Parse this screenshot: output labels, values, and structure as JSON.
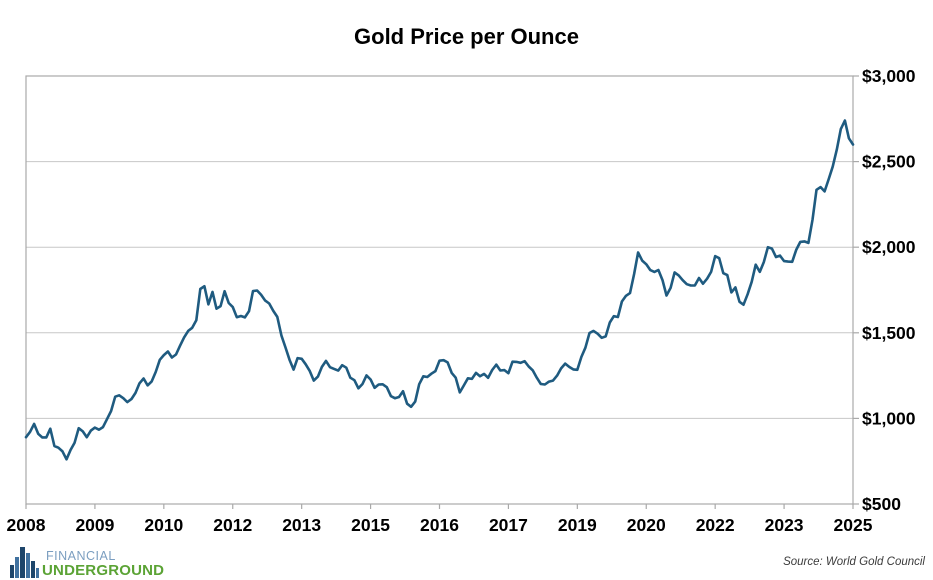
{
  "title": "Gold Price per Ounce",
  "source_note": "Source: World Gold Council",
  "logo": {
    "line1": "FINANCIAL",
    "line2": "UNDERGROUND"
  },
  "colors": {
    "line": "#1f5b80",
    "grid": "#c7c7c7",
    "axis_border": "#a9a9a9",
    "label_text": "#000000",
    "source_text": "#3c3c3c",
    "logo_blue_text": "#7b9ec0",
    "logo_green_text": "#5ba335",
    "logo_icon_dark": "#1e466b",
    "logo_icon_mid": "#40719f"
  },
  "chart_data": {
    "type": "line",
    "title": "Gold Price per Ounce",
    "frequency": "monthly",
    "x_start": "2008-01",
    "x_end": "2025-01",
    "ylim": [
      500,
      3000
    ],
    "y_ticks": [
      500,
      1000,
      1500,
      2000,
      2500,
      3000
    ],
    "y_tick_labels": [
      "$500",
      "$1,000",
      "$1,500",
      "$2,000",
      "$2,500",
      "$3,000"
    ],
    "y_axis_side": "right",
    "grid": "horizontal-only",
    "legend": "none",
    "x_tick_labels": [
      "2008",
      "2009",
      "2010",
      "2012",
      "2013",
      "2015",
      "2016",
      "2017",
      "2019",
      "2020",
      "2022",
      "2023",
      "2025"
    ],
    "x_tick_indices": [
      0,
      17,
      34,
      51,
      68,
      85,
      102,
      119,
      136,
      153,
      170,
      187,
      204
    ],
    "series_name": "Gold price (USD per ounce)",
    "values": [
      890,
      922,
      968,
      910,
      889,
      889,
      940,
      839,
      829,
      807,
      761,
      816,
      858,
      943,
      924,
      890,
      929,
      946,
      934,
      949,
      997,
      1043,
      1127,
      1135,
      1118,
      1095,
      1113,
      1149,
      1205,
      1233,
      1193,
      1216,
      1271,
      1342,
      1370,
      1391,
      1356,
      1373,
      1424,
      1473,
      1511,
      1529,
      1573,
      1756,
      1772,
      1666,
      1739,
      1641,
      1656,
      1743,
      1674,
      1650,
      1591,
      1598,
      1590,
      1626,
      1744,
      1747,
      1722,
      1688,
      1671,
      1628,
      1593,
      1485,
      1414,
      1343,
      1285,
      1352,
      1348,
      1316,
      1276,
      1221,
      1244,
      1301,
      1336,
      1299,
      1289,
      1279,
      1311,
      1296,
      1238,
      1223,
      1176,
      1201,
      1251,
      1227,
      1179,
      1198,
      1199,
      1182,
      1130,
      1118,
      1125,
      1159,
      1086,
      1068,
      1098,
      1200,
      1246,
      1242,
      1261,
      1276,
      1337,
      1340,
      1327,
      1266,
      1238,
      1152,
      1192,
      1234,
      1231,
      1266,
      1246,
      1260,
      1237,
      1283,
      1314,
      1280,
      1282,
      1264,
      1331,
      1330,
      1325,
      1334,
      1303,
      1281,
      1238,
      1201,
      1198,
      1215,
      1221,
      1250,
      1292,
      1320,
      1301,
      1286,
      1284,
      1359,
      1413,
      1499,
      1511,
      1495,
      1471,
      1479,
      1560,
      1597,
      1592,
      1683,
      1716,
      1732,
      1843,
      1969,
      1922,
      1900,
      1866,
      1856,
      1867,
      1808,
      1718,
      1762,
      1853,
      1835,
      1807,
      1784,
      1776,
      1777,
      1820,
      1787,
      1816,
      1856,
      1948,
      1936,
      1848,
      1837,
      1736,
      1765,
      1681,
      1664,
      1725,
      1798,
      1898,
      1856,
      1913,
      2000,
      1992,
      1943,
      1951,
      1919,
      1916,
      1915,
      1984,
      2031,
      2034,
      2025,
      2160,
      2335,
      2351,
      2326,
      2398,
      2470,
      2570,
      2690,
      2740,
      2636,
      2600
    ]
  }
}
